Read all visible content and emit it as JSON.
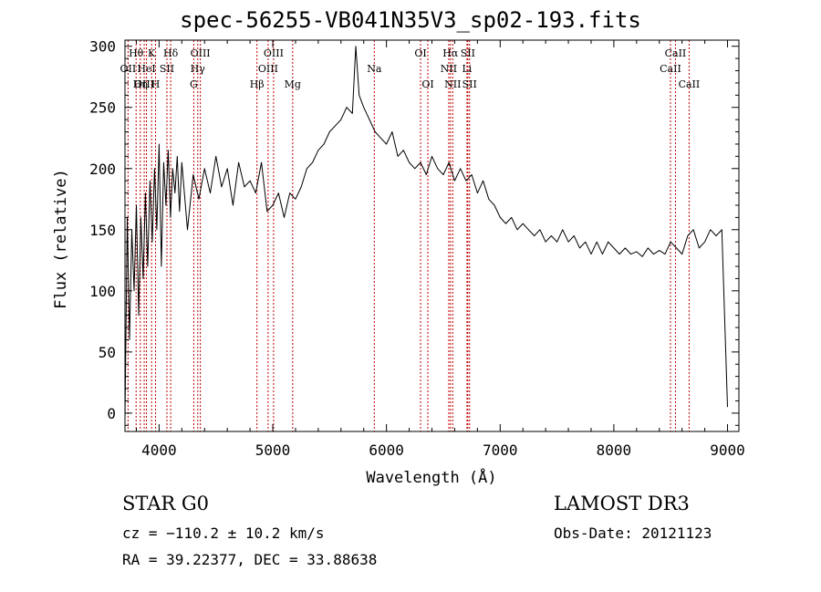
{
  "chart_data": {
    "type": "line",
    "title": "spec-56255-VB041N35V3_sp02-193.fits",
    "xlabel": "Wavelength (Å)",
    "ylabel": "Flux (relative)",
    "xlim": [
      3700,
      9100
    ],
    "ylim": [
      -15,
      305
    ],
    "xticks": [
      4000,
      5000,
      6000,
      7000,
      8000,
      9000
    ],
    "yticks": [
      0,
      50,
      100,
      150,
      200,
      250,
      300
    ],
    "series": [
      {
        "name": "flux",
        "x": [
          3700,
          3720,
          3740,
          3760,
          3780,
          3800,
          3820,
          3840,
          3860,
          3880,
          3900,
          3920,
          3940,
          3960,
          3980,
          4000,
          4020,
          4040,
          4060,
          4080,
          4100,
          4120,
          4140,
          4160,
          4180,
          4200,
          4250,
          4300,
          4350,
          4400,
          4450,
          4500,
          4550,
          4600,
          4650,
          4700,
          4750,
          4800,
          4850,
          4900,
          4950,
          5000,
          5050,
          5100,
          5150,
          5200,
          5250,
          5300,
          5350,
          5400,
          5450,
          5500,
          5550,
          5600,
          5650,
          5700,
          5730,
          5760,
          5800,
          5850,
          5900,
          5950,
          6000,
          6050,
          6100,
          6150,
          6200,
          6250,
          6300,
          6350,
          6400,
          6450,
          6500,
          6550,
          6600,
          6650,
          6700,
          6750,
          6800,
          6850,
          6900,
          6950,
          7000,
          7050,
          7100,
          7150,
          7200,
          7250,
          7300,
          7350,
          7400,
          7450,
          7500,
          7550,
          7600,
          7650,
          7700,
          7750,
          7800,
          7850,
          7900,
          7950,
          8000,
          8050,
          8100,
          8150,
          8200,
          8250,
          8300,
          8350,
          8400,
          8450,
          8500,
          8550,
          8600,
          8650,
          8700,
          8750,
          8800,
          8850,
          8900,
          8950,
          9000
        ],
        "y": [
          -5,
          160,
          60,
          150,
          100,
          170,
          80,
          160,
          110,
          180,
          120,
          190,
          140,
          200,
          150,
          220,
          120,
          205,
          170,
          215,
          160,
          200,
          180,
          210,
          165,
          205,
          150,
          195,
          175,
          200,
          180,
          210,
          185,
          200,
          170,
          205,
          185,
          190,
          180,
          205,
          165,
          170,
          180,
          160,
          180,
          175,
          185,
          200,
          205,
          215,
          220,
          230,
          235,
          240,
          250,
          245,
          300,
          260,
          250,
          240,
          230,
          225,
          220,
          230,
          210,
          215,
          205,
          200,
          205,
          195,
          210,
          200,
          195,
          205,
          190,
          200,
          190,
          195,
          180,
          190,
          175,
          170,
          160,
          155,
          160,
          150,
          155,
          150,
          145,
          150,
          140,
          145,
          140,
          150,
          140,
          145,
          135,
          140,
          130,
          140,
          130,
          140,
          135,
          130,
          135,
          130,
          132,
          128,
          135,
          130,
          133,
          130,
          140,
          135,
          130,
          145,
          150,
          135,
          140,
          150,
          145,
          150,
          5
        ]
      }
    ],
    "lines": [
      {
        "label": "Hθ",
        "wl": 3798,
        "row": 0
      },
      {
        "label": "OII",
        "wl": 3727,
        "row": 1
      },
      {
        "label": "OIII",
        "wl": 3869,
        "row": 2
      },
      {
        "label": "K",
        "wl": 3934,
        "row": 0
      },
      {
        "label": "HeI",
        "wl": 3889,
        "row": 1
      },
      {
        "label": "Hη",
        "wl": 3835,
        "row": 2
      },
      {
        "label": "H",
        "wl": 3969,
        "row": 2
      },
      {
        "label": "Hδ",
        "wl": 4102,
        "row": 0
      },
      {
        "label": "SII",
        "wl": 4069,
        "row": 1
      },
      {
        "label": "OIII",
        "wl": 4363,
        "row": 0
      },
      {
        "label": "Hγ",
        "wl": 4340,
        "row": 1
      },
      {
        "label": "G",
        "wl": 4305,
        "row": 2
      },
      {
        "label": "Hβ",
        "wl": 4861,
        "row": 2
      },
      {
        "label": "OIII",
        "wl": 5007,
        "row": 0
      },
      {
        "label": "OIII",
        "wl": 4959,
        "row": 1
      },
      {
        "label": "Mg",
        "wl": 5175,
        "row": 2
      },
      {
        "label": "Na",
        "wl": 5893,
        "row": 1
      },
      {
        "label": "OI",
        "wl": 6300,
        "row": 0
      },
      {
        "label": "OI",
        "wl": 6364,
        "row": 2
      },
      {
        "label": "Hα",
        "wl": 6563,
        "row": 0
      },
      {
        "label": "NII",
        "wl": 6548,
        "row": 1
      },
      {
        "label": "NII",
        "wl": 6583,
        "row": 2
      },
      {
        "label": "SII",
        "wl": 6716,
        "row": 0
      },
      {
        "label": "Li",
        "wl": 6708,
        "row": 1
      },
      {
        "label": "SII",
        "wl": 6731,
        "row": 2
      },
      {
        "label": "CaII",
        "wl": 8542,
        "row": 0
      },
      {
        "label": "CaII",
        "wl": 8498,
        "row": 1
      },
      {
        "label": "CaII",
        "wl": 8662,
        "row": 2
      }
    ]
  },
  "info": {
    "star_label": "STAR   G0",
    "survey": "LAMOST DR3",
    "cz": "cz = −110.2 ± 10.2 km/s",
    "obs_date": "Obs-Date: 20121123",
    "radec": "RA =  39.22377, DEC =  33.88638"
  },
  "colors": {
    "axis": "#000000",
    "spectrum": "#000000",
    "line_marker": "#c00000"
  }
}
